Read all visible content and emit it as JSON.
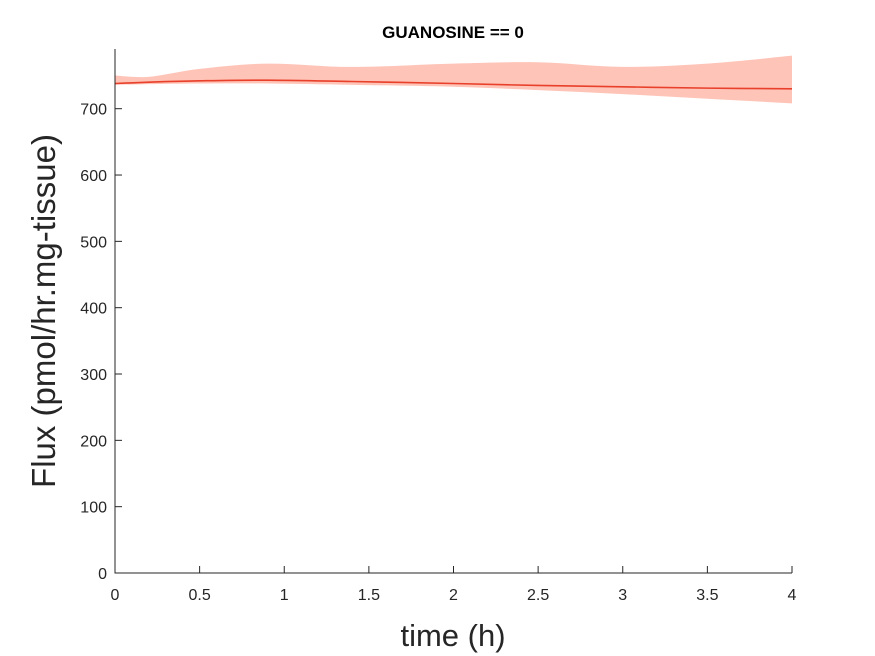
{
  "chart_data": {
    "type": "line",
    "title": "GUANOSINE == 0",
    "xlabel": "time (h)",
    "ylabel": "Flux (pmol/hr.mg-tissue)",
    "xlim": [
      0,
      4
    ],
    "ylim": [
      0,
      790
    ],
    "xticks": [
      0,
      0.5,
      1,
      1.5,
      2,
      2.5,
      3,
      3.5,
      4
    ],
    "xtick_labels": [
      "0",
      "0.5",
      "1",
      "1.5",
      "2",
      "2.5",
      "3",
      "3.5",
      "4"
    ],
    "yticks": [
      0,
      100,
      200,
      300,
      400,
      500,
      600,
      700
    ],
    "ytick_labels": [
      "0",
      "100",
      "200",
      "300",
      "400",
      "500",
      "600",
      "700"
    ],
    "grid": false,
    "series": [
      {
        "line_color": "#e8402a",
        "band_color": "#ffc4b8",
        "x": [
          0,
          0.2,
          0.5,
          0.9,
          1.4,
          2,
          2.5,
          3,
          3.5,
          4
        ],
        "y": [
          738,
          740,
          742,
          743,
          741,
          738,
          735,
          733,
          731,
          730
        ],
        "upper": [
          750,
          748,
          760,
          768,
          763,
          768,
          770,
          763,
          768,
          780
        ],
        "lower": [
          736,
          737,
          738,
          738,
          736,
          733,
          728,
          722,
          715,
          708
        ]
      }
    ]
  }
}
